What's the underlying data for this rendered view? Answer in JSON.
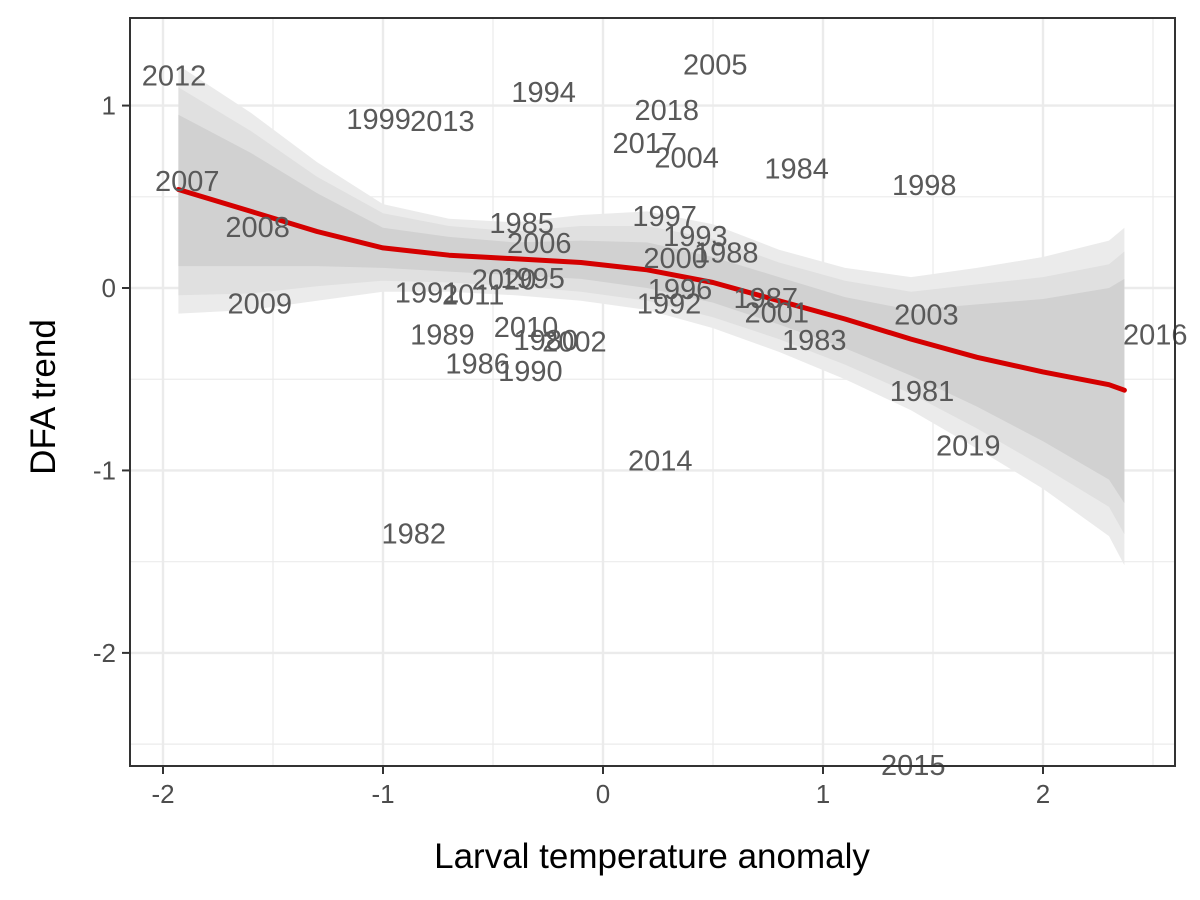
{
  "chart_data": {
    "type": "scatter",
    "xlabel": "Larval temperature anomaly",
    "ylabel": "DFA trend",
    "xlim": [
      -2.15,
      2.6
    ],
    "ylim": [
      -2.62,
      1.48
    ],
    "x_ticks": [
      {
        "value": -2,
        "label": "-2"
      },
      {
        "value": -1,
        "label": "-1"
      },
      {
        "value": 0,
        "label": "0"
      },
      {
        "value": 1,
        "label": "1"
      },
      {
        "value": 2,
        "label": "2"
      }
    ],
    "y_ticks": [
      {
        "value": -2,
        "label": "-2"
      },
      {
        "value": -1,
        "label": "-1"
      },
      {
        "value": 0,
        "label": "0"
      },
      {
        "value": 1,
        "label": "1"
      }
    ],
    "grid": true,
    "colors": {
      "trend": "#d40000",
      "band_outer": "#ebebeb",
      "band_mid": "#e0e0e0",
      "band_inner": "#d1d1d1",
      "grid": "#ebebeb",
      "panel_border": "#333333",
      "label": "#595959"
    },
    "points": [
      {
        "label": "2012",
        "x": -1.95,
        "y": 1.16
      },
      {
        "label": "2005",
        "x": 0.51,
        "y": 1.22
      },
      {
        "label": "1994",
        "x": -0.27,
        "y": 1.07
      },
      {
        "label": "1999",
        "x": -1.02,
        "y": 0.92
      },
      {
        "label": "2013",
        "x": -0.73,
        "y": 0.91
      },
      {
        "label": "2018",
        "x": 0.29,
        "y": 0.97
      },
      {
        "label": "2017",
        "x": 0.19,
        "y": 0.79
      },
      {
        "label": "2004",
        "x": 0.38,
        "y": 0.71
      },
      {
        "label": "1984",
        "x": 0.88,
        "y": 0.65
      },
      {
        "label": "1998",
        "x": 1.46,
        "y": 0.56
      },
      {
        "label": "2007",
        "x": -1.89,
        "y": 0.58
      },
      {
        "label": "2008",
        "x": -1.57,
        "y": 0.33
      },
      {
        "label": "1985",
        "x": -0.37,
        "y": 0.35
      },
      {
        "label": "1997",
        "x": 0.28,
        "y": 0.39
      },
      {
        "label": "2006",
        "x": -0.29,
        "y": 0.24
      },
      {
        "label": "1993",
        "x": 0.42,
        "y": 0.28
      },
      {
        "label": "1988",
        "x": 0.56,
        "y": 0.19
      },
      {
        "label": "2000",
        "x": 0.33,
        "y": 0.16
      },
      {
        "label": "2009",
        "x": -1.56,
        "y": -0.09
      },
      {
        "label": "1991",
        "x": -0.8,
        "y": -0.03
      },
      {
        "label": "2011",
        "x": -0.59,
        "y": -0.04
      },
      {
        "label": "2020",
        "x": -0.45,
        "y": 0.04
      },
      {
        "label": "1995",
        "x": -0.32,
        "y": 0.05
      },
      {
        "label": "1996",
        "x": 0.35,
        "y": -0.01
      },
      {
        "label": "1992",
        "x": 0.3,
        "y": -0.09
      },
      {
        "label": "1987",
        "x": 0.74,
        "y": -0.06
      },
      {
        "label": "2001",
        "x": 0.79,
        "y": -0.14
      },
      {
        "label": "2003",
        "x": 1.47,
        "y": -0.15
      },
      {
        "label": "2016",
        "x": 2.51,
        "y": -0.26
      },
      {
        "label": "1989",
        "x": -0.73,
        "y": -0.26
      },
      {
        "label": "2010",
        "x": -0.35,
        "y": -0.22
      },
      {
        "label": "1980",
        "x": -0.26,
        "y": -0.29
      },
      {
        "label": "2002",
        "x": -0.13,
        "y": -0.3
      },
      {
        "label": "1983",
        "x": 0.96,
        "y": -0.29
      },
      {
        "label": "1986",
        "x": -0.57,
        "y": -0.42
      },
      {
        "label": "1990",
        "x": -0.33,
        "y": -0.46
      },
      {
        "label": "1981",
        "x": 1.45,
        "y": -0.57
      },
      {
        "label": "2019",
        "x": 1.66,
        "y": -0.87
      },
      {
        "label": "2014",
        "x": 0.26,
        "y": -0.95
      },
      {
        "label": "1982",
        "x": -0.86,
        "y": -1.35
      },
      {
        "label": "2015",
        "x": 1.41,
        "y": -2.62
      }
    ],
    "trend": {
      "x": [
        -1.93,
        -1.6,
        -1.3,
        -1.0,
        -0.7,
        -0.4,
        -0.1,
        0.2,
        0.5,
        0.8,
        1.1,
        1.4,
        1.7,
        2.0,
        2.3,
        2.37
      ],
      "y": [
        0.54,
        0.42,
        0.31,
        0.22,
        0.18,
        0.16,
        0.14,
        0.1,
        0.03,
        -0.07,
        -0.17,
        -0.28,
        -0.38,
        -0.46,
        -0.53,
        -0.56
      ]
    },
    "band_outer": {
      "lower": [
        -0.14,
        -0.12,
        -0.07,
        -0.02,
        -0.02,
        -0.04,
        -0.07,
        -0.12,
        -0.22,
        -0.35,
        -0.5,
        -0.67,
        -0.88,
        -1.1,
        -1.36,
        -1.52
      ],
      "upper": [
        1.22,
        0.96,
        0.69,
        0.46,
        0.38,
        0.36,
        0.4,
        0.42,
        0.35,
        0.21,
        0.11,
        0.06,
        0.11,
        0.17,
        0.26,
        0.33
      ]
    },
    "band_mid": {
      "lower": [
        -0.04,
        -0.03,
        0.01,
        0.04,
        0.03,
        0.01,
        -0.02,
        -0.07,
        -0.16,
        -0.28,
        -0.42,
        -0.58,
        -0.77,
        -0.98,
        -1.2,
        -1.35
      ],
      "upper": [
        1.1,
        0.86,
        0.61,
        0.41,
        0.34,
        0.31,
        0.34,
        0.34,
        0.27,
        0.14,
        0.04,
        -0.02,
        0.02,
        0.06,
        0.13,
        0.2
      ]
    },
    "band_inner": {
      "lower": [
        0.12,
        0.12,
        0.12,
        0.11,
        0.09,
        0.07,
        0.05,
        0.0,
        -0.08,
        -0.2,
        -0.33,
        -0.48,
        -0.65,
        -0.84,
        -1.05,
        -1.18
      ],
      "upper": [
        0.95,
        0.74,
        0.52,
        0.33,
        0.28,
        0.25,
        0.26,
        0.25,
        0.17,
        0.06,
        -0.05,
        -0.12,
        -0.09,
        -0.06,
        0.0,
        0.05
      ]
    }
  }
}
